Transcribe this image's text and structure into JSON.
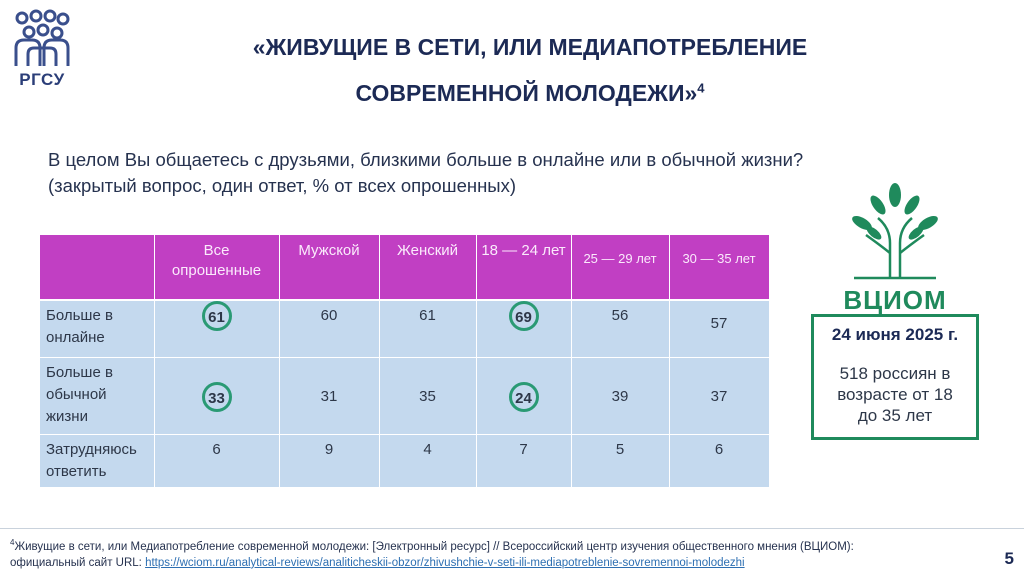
{
  "logo": {
    "text": "РГСУ"
  },
  "title": {
    "line1": "«ЖИВУЩИЕ В СЕТИ, ИЛИ МЕДИАПОТРЕБЛЕНИЕ",
    "line2": "СОВРЕМЕННОЙ МОЛОДЕЖИ»",
    "ref": "4"
  },
  "question": {
    "line1": "В целом Вы общаетесь с друзьями, близкими больше в онлайне или в обычной жизни?",
    "line2": "(закрытый вопрос, один ответ, % от всех опрошенных)"
  },
  "table": {
    "headers": [
      "",
      "Все опрошенные",
      "Мужской",
      "Женский",
      "18 — 24 лет",
      "25 — 29 лет",
      "30 — 35 лет"
    ],
    "rows": [
      {
        "label": "Больше в онлайне",
        "values": [
          "61",
          "60",
          "61",
          "69",
          "56",
          "57"
        ]
      },
      {
        "label": "Больше в обычной жизни",
        "values": [
          "33",
          "31",
          "35",
          "24",
          "39",
          "37"
        ]
      },
      {
        "label": "Затрудняюсь ответить",
        "values": [
          "6",
          "9",
          "4",
          "7",
          "5",
          "6"
        ]
      }
    ],
    "highlight_color": "#2a9a74"
  },
  "wciom": {
    "logo_text": "ВЦИОМ"
  },
  "info": {
    "date": "24 июня 2025 г.",
    "desc_line1": "518 россиян в",
    "desc_line2": "возрасте от 18",
    "desc_line3": "до 35 лет"
  },
  "footnote": {
    "ref": "4",
    "text": "Живущие в сети, или Медиапотребление современной молодежи: [Электронный ресурс] // Всероссийский центр изучения общественного мнения (ВЦИОМ):",
    "url_prefix": "официальный сайт URL: ",
    "url": "https://wciom.ru/analytical-reviews/analiticheskii-obzor/zhivushchie-v-seti-ili-mediapotreblenie-sovremennoi-molodezhi"
  },
  "page_number": "5",
  "colors": {
    "header": "#c13fc3",
    "cell": "#c4d9ee",
    "accent_green": "#1f8a5c",
    "title": "#1c2a55"
  }
}
